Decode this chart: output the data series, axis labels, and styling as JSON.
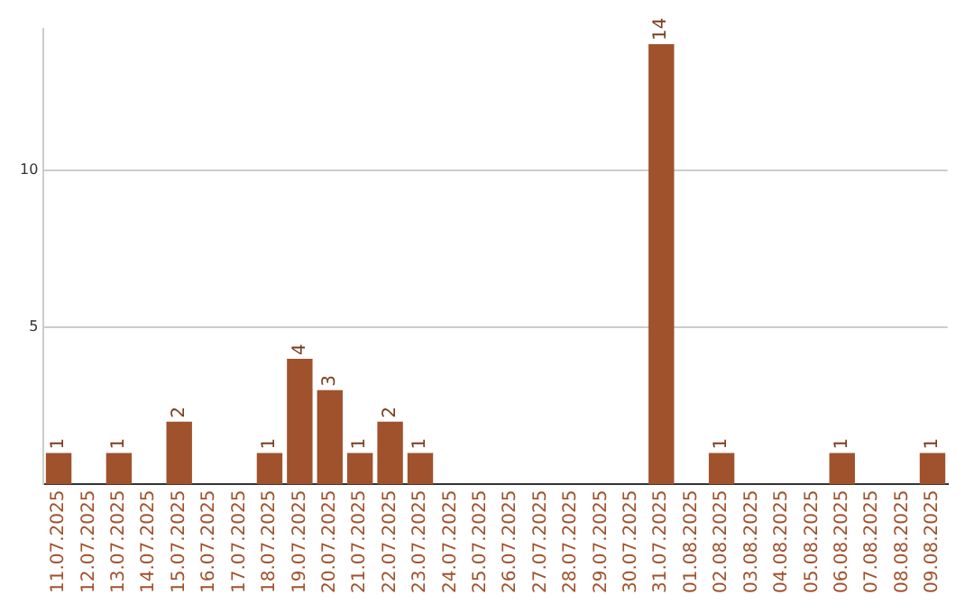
{
  "chart_data": {
    "type": "bar",
    "categories": [
      "11.07.2025",
      "12.07.2025",
      "13.07.2025",
      "14.07.2025",
      "15.07.2025",
      "16.07.2025",
      "17.07.2025",
      "18.07.2025",
      "19.07.2025",
      "20.07.2025",
      "21.07.2025",
      "22.07.2025",
      "23.07.2025",
      "24.07.2025",
      "25.07.2025",
      "26.07.2025",
      "27.07.2025",
      "28.07.2025",
      "29.07.2025",
      "30.07.2025",
      "31.07.2025",
      "01.08.2025",
      "02.08.2025",
      "03.08.2025",
      "04.08.2025",
      "05.08.2025",
      "06.08.2025",
      "07.08.2025",
      "08.08.2025",
      "09.08.2025"
    ],
    "values": [
      1,
      0,
      1,
      0,
      2,
      0,
      0,
      1,
      4,
      3,
      1,
      2,
      1,
      0,
      0,
      0,
      0,
      0,
      0,
      0,
      14,
      0,
      1,
      0,
      0,
      0,
      1,
      0,
      0,
      1
    ],
    "value_labels": [
      "1",
      null,
      "1",
      null,
      "2",
      null,
      null,
      "1",
      "4",
      "3",
      "1",
      "2",
      "1",
      null,
      null,
      null,
      null,
      null,
      null,
      null,
      "14",
      null,
      "1",
      null,
      null,
      null,
      "1",
      null,
      null,
      "1"
    ],
    "color": "#a0522d",
    "ylim": [
      0,
      14.5
    ],
    "yticks": [
      5,
      10
    ],
    "grid": "y",
    "legend": false
  }
}
